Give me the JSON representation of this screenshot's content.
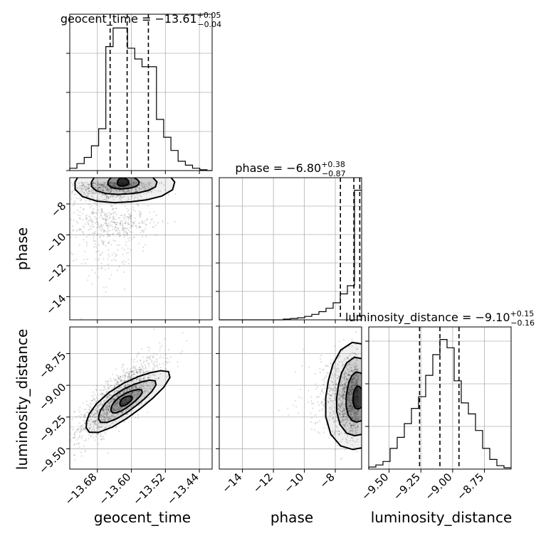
{
  "chart_data": {
    "type": "corner",
    "parameters": [
      "geocent_time",
      "phase",
      "luminosity_distance"
    ],
    "titles": {
      "geocent_time": {
        "name": "geocent_time",
        "median": "−13.61",
        "plus": "+0.05",
        "minus": "−0.04"
      },
      "phase": {
        "name": "phase",
        "median": "−6.80",
        "plus": "+0.38",
        "minus": "−0.87"
      },
      "luminosity_distance": {
        "name": "luminosity_distance",
        "median": "−9.10",
        "plus": "+0.15",
        "minus": "−0.16"
      }
    },
    "ranges": {
      "geocent_time": [
        -13.745,
        -13.41
      ],
      "phase": [
        -15.5,
        -6.3
      ],
      "luminosity_distance": [
        -9.66,
        -8.54
      ]
    },
    "ticks": {
      "geocent_time": {
        "values": [
          -13.68,
          -13.6,
          -13.52,
          -13.44
        ],
        "labels": [
          "−13.68",
          "−13.60",
          "−13.52",
          "−13.44"
        ]
      },
      "phase": {
        "values": [
          -14,
          -12,
          -10,
          -8
        ],
        "labels": [
          "−14",
          "−12",
          "−10",
          "−8"
        ]
      },
      "luminosity_distance": {
        "values": [
          -9.5,
          -9.25,
          -9.0,
          -8.75
        ],
        "labels": [
          "−9.50",
          "−9.25",
          "−9.00",
          "−8.75"
        ]
      }
    },
    "axis_labels": {
      "geocent_time": "geocent_time",
      "phase": "phase",
      "luminosity_distance": "luminosity_distance"
    },
    "quantiles": {
      "geocent_time": [
        -13.65,
        -13.61,
        -13.56
      ],
      "phase": [
        -7.67,
        -6.8,
        -6.42
      ],
      "luminosity_distance": [
        -9.26,
        -9.1,
        -8.95
      ]
    },
    "hist_geocent_time": {
      "edges": [
        -13.745,
        -13.728,
        -13.711,
        -13.694,
        -13.677,
        -13.66,
        -13.643,
        -13.626,
        -13.609,
        -13.592,
        -13.575,
        -13.558,
        -13.541,
        -13.524,
        -13.507,
        -13.49,
        -13.473,
        -13.456,
        -13.439,
        -13.422,
        -13.41
      ],
      "counts": [
        0.3,
        0.9,
        1.7,
        3.2,
        5.4,
        16,
        18.4,
        18.4,
        15.8,
        14.4,
        13.4,
        13.4,
        6.6,
        4.3,
        2.6,
        1.2,
        0.7,
        0.3,
        0.1,
        0
      ]
    },
    "hist_phase": {
      "edges": [
        -15.5,
        -15.04,
        -14.58,
        -14.12,
        -13.66,
        -13.2,
        -12.74,
        -12.28,
        -11.82,
        -11.36,
        -10.9,
        -10.44,
        -9.98,
        -9.52,
        -9.06,
        -8.6,
        -8.14,
        -7.68,
        -7.22,
        -6.76,
        -6.3
      ],
      "counts": [
        0,
        0,
        0,
        0,
        0,
        0,
        0,
        0,
        0,
        0.1,
        0.2,
        0.3,
        0.5,
        0.8,
        1.2,
        1.7,
        2.5,
        3.8,
        5,
        19
      ]
    },
    "hist_luminosity_distance": {
      "edges": [
        -9.66,
        -9.604,
        -9.548,
        -9.492,
        -9.436,
        -9.38,
        -9.324,
        -9.268,
        -9.212,
        -9.156,
        -9.1,
        -9.044,
        -8.988,
        -8.932,
        -8.876,
        -8.82,
        -8.764,
        -8.708,
        -8.652,
        -8.596,
        -8.54
      ],
      "counts": [
        0.3,
        0.6,
        1.1,
        3,
        4.6,
        6.6,
        8.8,
        10.5,
        13.6,
        16.6,
        18.8,
        17.6,
        12.8,
        9.6,
        8,
        5.6,
        3,
        1.4,
        0.5,
        0.2
      ]
    },
    "scatter_center_phase_vs_geocent_time": [
      -13.65,
      -6.95
    ],
    "scatter_center_luminosity_distance_vs_geocent_time": [
      -13.63,
      -9.1
    ],
    "scatter_center_luminosity_distance_vs_phase": [
      -6.5,
      -9.1
    ],
    "correlation_luminosity_distance_vs_geocent_time": 0.8,
    "grid": true,
    "contours": true
  }
}
